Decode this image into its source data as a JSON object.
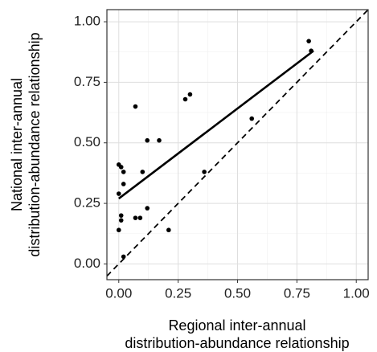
{
  "chart_data": {
    "type": "scatter",
    "xlabel": [
      "Regional inter-annual",
      "distribution-abundance relationship"
    ],
    "ylabel": [
      "National inter-annual",
      "distribution-abundance relationship"
    ],
    "x": [
      0.8,
      0.81,
      0.3,
      0.28,
      0.07,
      0.56,
      0.12,
      0.17,
      0.0,
      0.01,
      0.02,
      0.1,
      0.36,
      0.02,
      0.0,
      0.12,
      0.01,
      0.07,
      0.09,
      0.01,
      0.0,
      0.21,
      0.02
    ],
    "values": [
      0.92,
      0.88,
      0.7,
      0.68,
      0.65,
      0.6,
      0.51,
      0.51,
      0.41,
      0.4,
      0.38,
      0.38,
      0.38,
      0.33,
      0.29,
      0.23,
      0.2,
      0.19,
      0.19,
      0.18,
      0.14,
      0.14,
      0.03
    ],
    "color": "#000000",
    "regression_line": {
      "x": [
        0,
        0.82
      ],
      "y": [
        0.27,
        0.88
      ]
    },
    "xlim": [
      -0.05,
      1.05
    ],
    "ylim": [
      -0.065,
      1.05
    ],
    "xticks": [
      {
        "value": 0,
        "label": "0.00"
      },
      {
        "value": 0.25,
        "label": "0.25"
      },
      {
        "value": 0.5,
        "label": "0.50"
      },
      {
        "value": 0.75,
        "label": "0.75"
      },
      {
        "value": 1,
        "label": "1.00"
      }
    ],
    "yticks": [
      {
        "value": 0,
        "label": "0.00"
      },
      {
        "value": 0.25,
        "label": "0.25"
      },
      {
        "value": 0.5,
        "label": "0.50"
      },
      {
        "value": 0.75,
        "label": "0.75"
      },
      {
        "value": 1,
        "label": "1.00"
      }
    ],
    "grid": true,
    "identity_line": true
  }
}
